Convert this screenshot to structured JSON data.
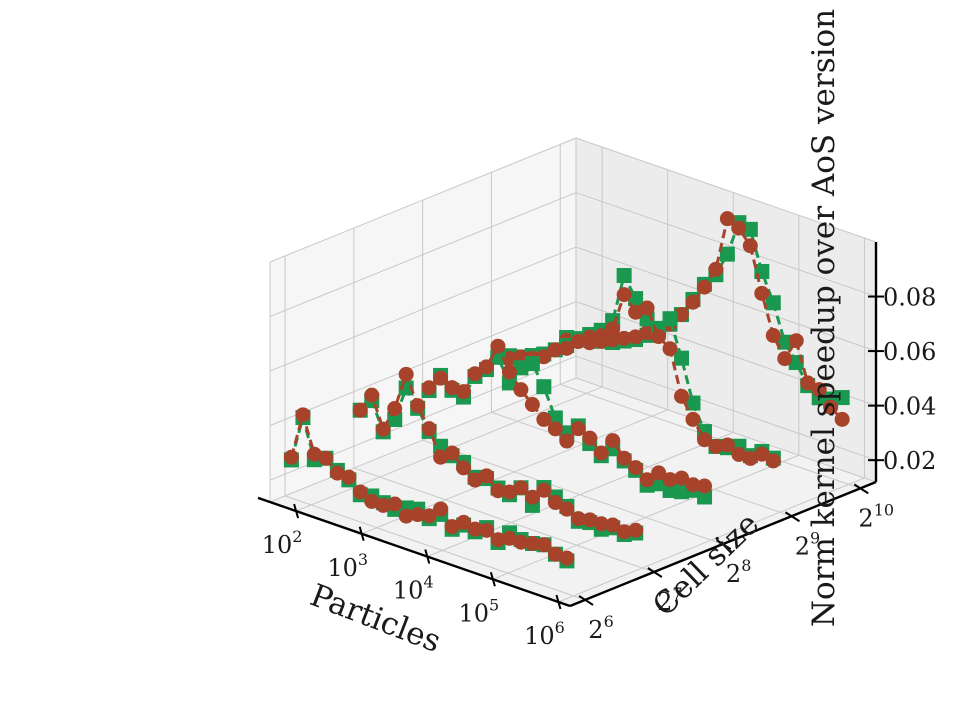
{
  "chart_data": {
    "type": "line",
    "projection": "3d",
    "xlabel": "Particles",
    "ylabel": "Cell size",
    "zlabel": "Norm kernel speedup over AoS version",
    "x_scale": "log10",
    "x_ticks": [
      {
        "value": 100,
        "base": "10",
        "exp": "2"
      },
      {
        "value": 1000,
        "base": "10",
        "exp": "3"
      },
      {
        "value": 10000,
        "base": "10",
        "exp": "4"
      },
      {
        "value": 100000,
        "base": "10",
        "exp": "5"
      },
      {
        "value": 1000000,
        "base": "10",
        "exp": "6"
      }
    ],
    "y_scale": "log2",
    "y_ticks": [
      {
        "value": 64,
        "base": "2",
        "exp": "6"
      },
      {
        "value": 128,
        "base": "2",
        "exp": "7"
      },
      {
        "value": 256,
        "base": "2",
        "exp": "8"
      },
      {
        "value": 512,
        "base": "2",
        "exp": "9"
      },
      {
        "value": 1024,
        "base": "2",
        "exp": "10"
      }
    ],
    "z_ticks": [
      {
        "value": 0.02,
        "label": "0.02"
      },
      {
        "value": 0.04,
        "label": "0.04"
      },
      {
        "value": 0.06,
        "label": "0.06"
      },
      {
        "value": 0.08,
        "label": "0.08"
      }
    ],
    "xlim": [
      40,
      1500000
    ],
    "ylim": [
      55,
      1200
    ],
    "zlim": [
      0.012,
      0.1
    ],
    "grid": true,
    "x": [
      50,
      75,
      112,
      168,
      251,
      376,
      562,
      841,
      1259,
      1884,
      2818,
      4217,
      6310,
      9441,
      14125,
      21135,
      31623,
      47315,
      70795,
      105925,
      158489,
      237137,
      354813,
      530884,
      794328
    ],
    "series": [
      {
        "color": "#1a9850",
        "marker": "square",
        "lines": [
          {
            "cell_size": 64,
            "values": [
              0.026,
              0.043,
              0.029,
              0.031,
              0.028,
              0.026,
              0.022,
              0.023,
              0.022,
              0.021,
              0.023,
              0.024,
              0.022,
              0.025,
              0.021,
              0.024,
              0.023,
              0.026,
              0.022,
              0.027,
              0.026,
              0.026,
              0.027,
              0.025,
              0.024
            ]
          },
          {
            "cell_size": 128,
            "values": [
              0.034,
              0.039,
              0.029,
              0.035,
              0.048,
              0.042,
              0.035,
              0.031,
              0.029,
              0.028,
              0.024,
              0.025,
              0.023,
              0.022,
              0.026,
              0.021,
              0.029,
              0.027,
              0.025,
              0.021,
              0.022,
              0.021,
              0.023,
              0.022,
              0.024
            ]
          },
          {
            "cell_size": 256,
            "values": [
              0.031,
              0.038,
              0.034,
              0.033,
              0.042,
              0.046,
              0.052,
              0.044,
              0.051,
              0.054,
              0.047,
              0.037,
              0.033,
              0.037,
              0.032,
              0.029,
              0.033,
              0.03,
              0.028,
              0.024,
              0.026,
              0.025,
              0.026,
              0.028,
              0.027
            ]
          },
          {
            "cell_size": 512,
            "values": [
              0.033,
              0.035,
              0.036,
              0.038,
              0.04,
              0.043,
              0.046,
              0.05,
              0.053,
              0.056,
              0.061,
              0.079,
              0.072,
              0.066,
              0.064,
              0.069,
              0.056,
              0.041,
              0.032,
              0.028,
              0.029,
              0.031,
              0.029,
              0.032,
              0.031
            ]
          },
          {
            "cell_size": 1024,
            "values": [
              0.03,
              0.031,
              0.032,
              0.033,
              0.034,
              0.036,
              0.038,
              0.041,
              0.044,
              0.048,
              0.053,
              0.06,
              0.067,
              0.072,
              0.081,
              0.094,
              0.093,
              0.079,
              0.069,
              0.056,
              0.05,
              0.043,
              0.04,
              0.041,
              0.043
            ]
          }
        ]
      },
      {
        "color": "#a6432a",
        "marker": "circle",
        "lines": [
          {
            "cell_size": 64,
            "values": [
              0.027,
              0.044,
              0.031,
              0.031,
              0.027,
              0.027,
              0.023,
              0.021,
              0.021,
              0.023,
              0.02,
              0.022,
              0.023,
              0.027,
              0.022,
              0.025,
              0.024,
              0.025,
              0.023,
              0.025,
              0.025,
              0.026,
              0.027,
              0.025,
              0.025
            ]
          },
          {
            "cell_size": 128,
            "values": [
              0.034,
              0.041,
              0.03,
              0.039,
              0.053,
              0.043,
              0.036,
              0.027,
              0.03,
              0.026,
              0.023,
              0.026,
              0.022,
              0.023,
              0.026,
              0.024,
              0.028,
              0.025,
              0.024,
              0.022,
              0.023,
              0.023,
              0.024,
              0.023,
              0.025
            ]
          },
          {
            "cell_size": 256,
            "values": [
              0.032,
              0.037,
              0.035,
              0.035,
              0.043,
              0.047,
              0.056,
              0.048,
              0.043,
              0.039,
              0.035,
              0.033,
              0.03,
              0.036,
              0.034,
              0.03,
              0.036,
              0.031,
              0.029,
              0.026,
              0.03,
              0.029,
              0.031,
              0.03,
              0.031
            ]
          },
          {
            "cell_size": 512,
            "values": [
              0.033,
              0.034,
              0.036,
              0.037,
              0.039,
              0.043,
              0.045,
              0.049,
              0.052,
              0.054,
              0.058,
              0.072,
              0.067,
              0.07,
              0.061,
              0.058,
              0.042,
              0.035,
              0.029,
              0.028,
              0.03,
              0.028,
              0.028,
              0.031,
              0.03
            ]
          },
          {
            "cell_size": 1024,
            "values": [
              0.029,
              0.03,
              0.031,
              0.033,
              0.035,
              0.037,
              0.039,
              0.042,
              0.045,
              0.048,
              0.053,
              0.059,
              0.066,
              0.074,
              0.094,
              0.092,
              0.087,
              0.071,
              0.057,
              0.05,
              0.058,
              0.044,
              0.043,
              0.038,
              0.035
            ]
          }
        ]
      }
    ]
  }
}
